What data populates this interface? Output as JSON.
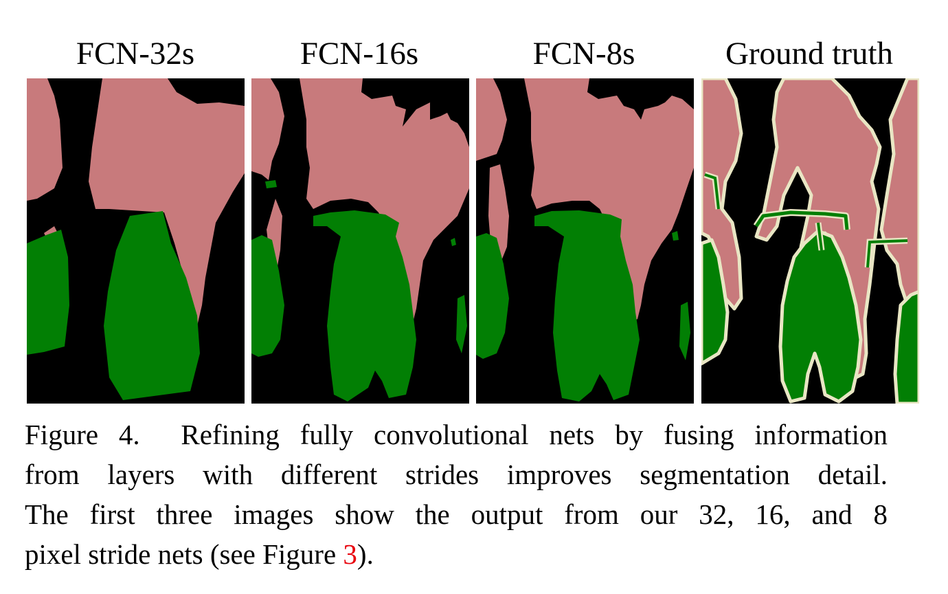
{
  "panels": [
    {
      "title": "FCN-32s"
    },
    {
      "title": "FCN-16s"
    },
    {
      "title": "FCN-8s"
    },
    {
      "title": "Ground truth"
    }
  ],
  "colors": {
    "person": "#c87a7c",
    "bicycle": "#027f04",
    "background": "#000000",
    "boundary": "#e9e6c4"
  },
  "caption": {
    "label": "Figure 4.",
    "line1": "Refining fully convolutional nets by fusing information",
    "line2": "from layers with different strides improves segmentation detail.",
    "line3": "The first three images show the output from our 32, 16, and 8",
    "line4_pre": "pixel stride nets (see Figure ",
    "ref": "3",
    "line4_post": ")."
  }
}
